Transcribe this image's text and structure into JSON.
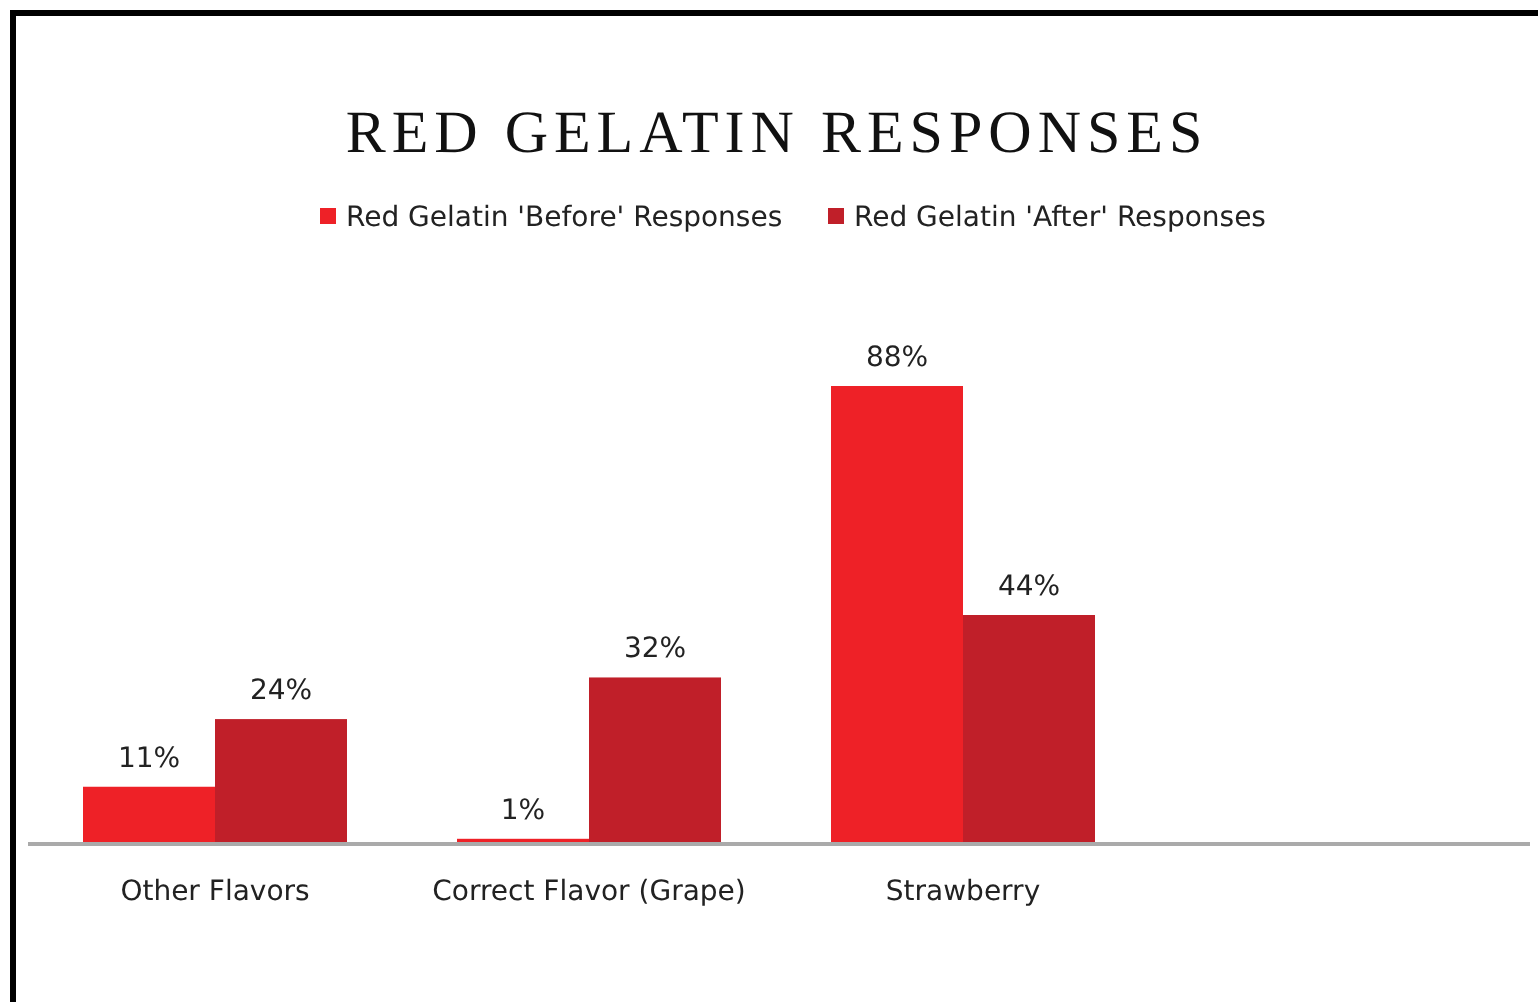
{
  "chart_data": {
    "type": "bar",
    "title": "RED GELATIN RESPONSES",
    "categories": [
      "Other Flavors",
      "Correct Flavor (Grape)",
      "Strawberry",
      null
    ],
    "series": [
      {
        "name": "Red Gelatin 'Before' Responses",
        "color": "#ee2127",
        "values": [
          11,
          1,
          88,
          null
        ],
        "value_labels": [
          "11%",
          "1%",
          "88%",
          null
        ]
      },
      {
        "name": "Red Gelatin 'After' Responses",
        "color": "#c01f29",
        "values": [
          24,
          32,
          44,
          null
        ],
        "value_labels": [
          "24%",
          "32%",
          "44%",
          null
        ]
      }
    ],
    "legend": "top",
    "grid": false
  }
}
